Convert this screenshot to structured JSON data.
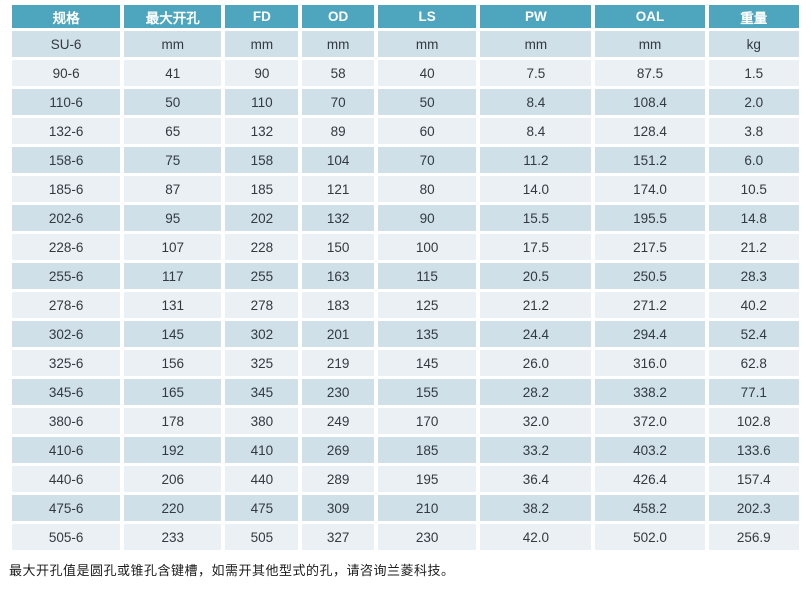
{
  "table": {
    "columns": [
      "规格",
      "最大开孔",
      "FD",
      "OD",
      "LS",
      "PW",
      "OAL",
      "重量"
    ],
    "units_row": [
      "SU-6",
      "mm",
      "mm",
      "mm",
      "mm",
      "mm",
      "mm",
      "kg"
    ],
    "rows": [
      [
        "90-6",
        "41",
        "90",
        "58",
        "40",
        "7.5",
        "87.5",
        "1.5"
      ],
      [
        "110-6",
        "50",
        "110",
        "70",
        "50",
        "8.4",
        "108.4",
        "2.0"
      ],
      [
        "132-6",
        "65",
        "132",
        "89",
        "60",
        "8.4",
        "128.4",
        "3.8"
      ],
      [
        "158-6",
        "75",
        "158",
        "104",
        "70",
        "11.2",
        "151.2",
        "6.0"
      ],
      [
        "185-6",
        "87",
        "185",
        "121",
        "80",
        "14.0",
        "174.0",
        "10.5"
      ],
      [
        "202-6",
        "95",
        "202",
        "132",
        "90",
        "15.5",
        "195.5",
        "14.8"
      ],
      [
        "228-6",
        "107",
        "228",
        "150",
        "100",
        "17.5",
        "217.5",
        "21.2"
      ],
      [
        "255-6",
        "117",
        "255",
        "163",
        "115",
        "20.5",
        "250.5",
        "28.3"
      ],
      [
        "278-6",
        "131",
        "278",
        "183",
        "125",
        "21.2",
        "271.2",
        "40.2"
      ],
      [
        "302-6",
        "145",
        "302",
        "201",
        "135",
        "24.4",
        "294.4",
        "52.4"
      ],
      [
        "325-6",
        "156",
        "325",
        "219",
        "145",
        "26.0",
        "316.0",
        "62.8"
      ],
      [
        "345-6",
        "165",
        "345",
        "230",
        "155",
        "28.2",
        "338.2",
        "77.1"
      ],
      [
        "380-6",
        "178",
        "380",
        "249",
        "170",
        "32.0",
        "372.0",
        "102.8"
      ],
      [
        "410-6",
        "192",
        "410",
        "269",
        "185",
        "33.2",
        "403.2",
        "133.6"
      ],
      [
        "440-6",
        "206",
        "440",
        "289",
        "195",
        "36.4",
        "426.4",
        "157.4"
      ],
      [
        "475-6",
        "220",
        "475",
        "309",
        "210",
        "38.2",
        "458.2",
        "202.3"
      ],
      [
        "505-6",
        "233",
        "505",
        "327",
        "230",
        "42.0",
        "502.0",
        "256.9"
      ]
    ],
    "column_widths_pct": [
      14.25,
      12.82,
      9.59,
      9.46,
      12.95,
      14.64,
      14.38,
      11.91
    ]
  },
  "footer": {
    "note": "最大开孔值是圆孔或锥孔含键槽，如需开其他型式的孔，请咨询兰菱科技。"
  },
  "colors": {
    "header_bg": "#4DA5BE",
    "header_text": "#FFFFFF",
    "row_dark": "#CFE0E9",
    "row_light": "#EAF0F4",
    "cell_text": "#333940"
  }
}
